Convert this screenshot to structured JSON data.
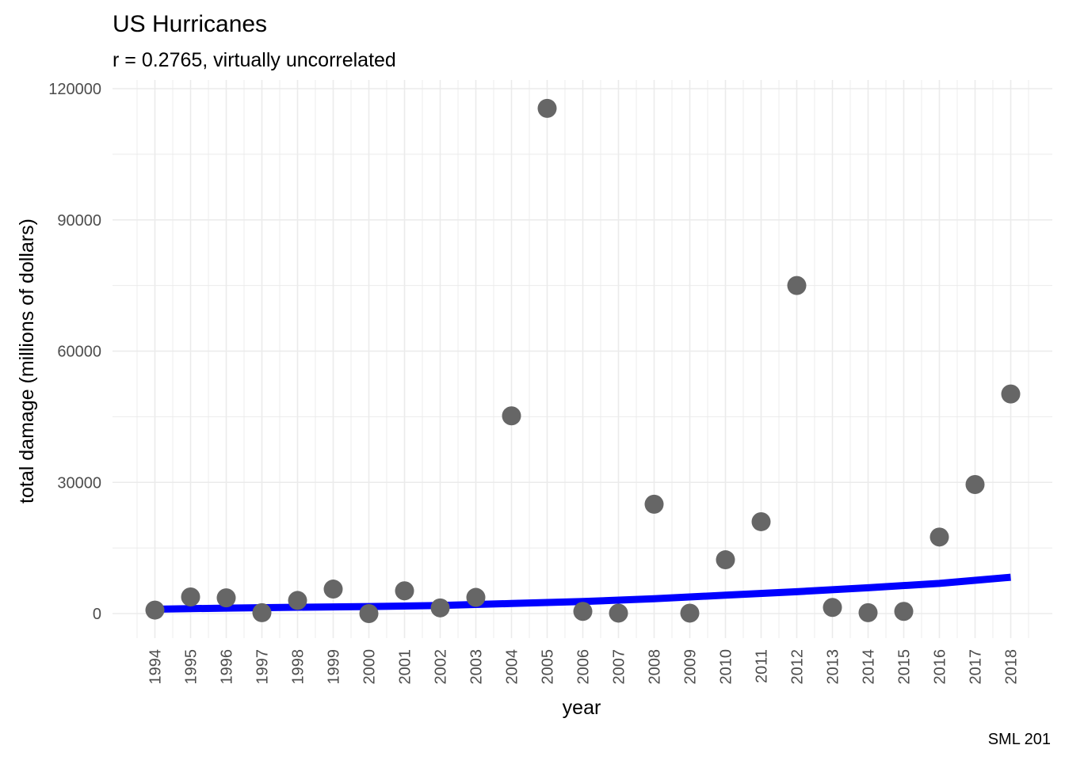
{
  "chart_data": {
    "type": "scatter",
    "title": "US Hurricanes",
    "subtitle": "r = 0.2765, virtually uncorrelated",
    "xlabel": "year",
    "ylabel": "total damage (millions of dollars)",
    "caption": "SML 201",
    "x_tick_labels": [
      "1994",
      "1995",
      "1996",
      "1997",
      "1998",
      "1999",
      "2000",
      "2001",
      "2002",
      "2003",
      "2004",
      "2005",
      "2006",
      "2007",
      "2008",
      "2009",
      "2010",
      "2011",
      "2012",
      "2013",
      "2014",
      "2015",
      "2016",
      "2017",
      "2018"
    ],
    "y_tick_labels": [
      "0",
      "30000",
      "60000",
      "90000",
      "120000"
    ],
    "ylim": [
      -5500,
      120000
    ],
    "grid": true,
    "point_color": "#666666",
    "trend_color": "#0000ff",
    "gridline_color": "#ebebeb",
    "points": [
      {
        "x": 1994,
        "y": 800
      },
      {
        "x": 1995,
        "y": 3800
      },
      {
        "x": 1996,
        "y": 3600
      },
      {
        "x": 1997,
        "y": 200
      },
      {
        "x": 1998,
        "y": 3000
      },
      {
        "x": 1999,
        "y": 5600
      },
      {
        "x": 2000,
        "y": 0
      },
      {
        "x": 2001,
        "y": 5200
      },
      {
        "x": 2002,
        "y": 1300
      },
      {
        "x": 2003,
        "y": 3700
      },
      {
        "x": 2004,
        "y": 45200
      },
      {
        "x": 2005,
        "y": 115500
      },
      {
        "x": 2006,
        "y": 500
      },
      {
        "x": 2007,
        "y": 100
      },
      {
        "x": 2008,
        "y": 25000
      },
      {
        "x": 2009,
        "y": 100
      },
      {
        "x": 2010,
        "y": 12300
      },
      {
        "x": 2011,
        "y": 21000
      },
      {
        "x": 2012,
        "y": 75000
      },
      {
        "x": 2013,
        "y": 1400
      },
      {
        "x": 2014,
        "y": 200
      },
      {
        "x": 2015,
        "y": 500
      },
      {
        "x": 2016,
        "y": 17500
      },
      {
        "x": 2017,
        "y": 29500
      },
      {
        "x": 2018,
        "y": 50200
      }
    ],
    "trend_line": [
      {
        "x": 1994,
        "y": 1000
      },
      {
        "x": 1996,
        "y": 1250
      },
      {
        "x": 1998,
        "y": 1450
      },
      {
        "x": 2000,
        "y": 1600
      },
      {
        "x": 2002,
        "y": 1850
      },
      {
        "x": 2004,
        "y": 2300
      },
      {
        "x": 2006,
        "y": 2750
      },
      {
        "x": 2008,
        "y": 3400
      },
      {
        "x": 2010,
        "y": 4200
      },
      {
        "x": 2012,
        "y": 5000
      },
      {
        "x": 2014,
        "y": 5900
      },
      {
        "x": 2016,
        "y": 6900
      },
      {
        "x": 2018,
        "y": 8300
      }
    ]
  }
}
